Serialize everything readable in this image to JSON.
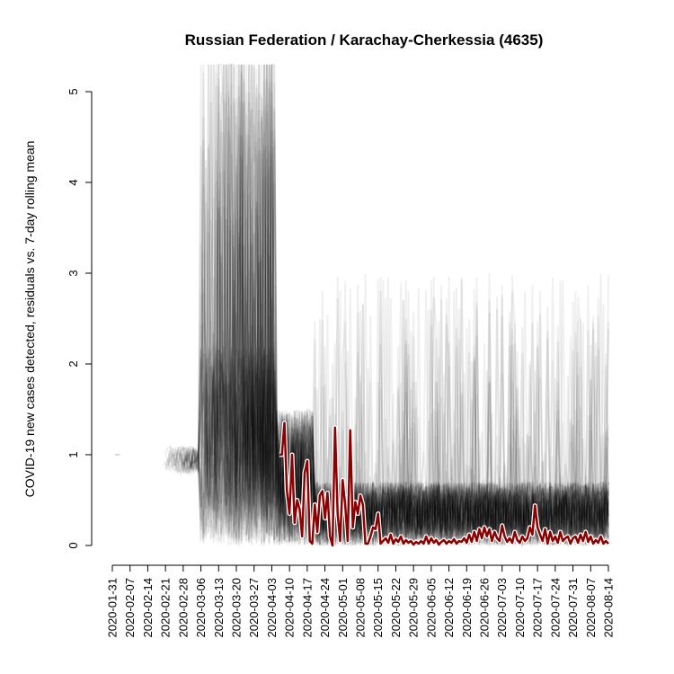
{
  "chart_data": {
    "type": "line",
    "title": "Russian Federation / Karachay-Cherkessia (4635)",
    "xlabel": "",
    "ylabel": "COVID-19 new cases detected, residuals vs. 7-day rolling mean",
    "ylim": [
      0,
      5
    ],
    "yticks": [
      0,
      1,
      2,
      3,
      4,
      5
    ],
    "xlim": [
      "2020-01-31",
      "2020-08-14"
    ],
    "xticks": [
      "2020-01-31",
      "2020-02-07",
      "2020-02-14",
      "2020-02-21",
      "2020-02-28",
      "2020-03-06",
      "2020-03-13",
      "2020-03-20",
      "2020-03-27",
      "2020-04-03",
      "2020-04-10",
      "2020-04-17",
      "2020-04-24",
      "2020-05-01",
      "2020-05-08",
      "2020-05-15",
      "2020-05-22",
      "2020-05-29",
      "2020-06-05",
      "2020-06-12",
      "2020-06-19",
      "2020-06-26",
      "2020-07-03",
      "2020-07-10",
      "2020-07-17",
      "2020-07-24",
      "2020-07-31",
      "2020-08-07",
      "2020-08-14"
    ],
    "grid": false,
    "background_series": {
      "description_color": "#000000",
      "opacity": 0.06
    },
    "series": [
      {
        "color": "#8b0000",
        "outline": "#ffffff",
        "points": [
          [
            "2020-04-06",
            1.0
          ],
          [
            "2020-04-07",
            1.0
          ],
          [
            "2020-04-08",
            1.35
          ],
          [
            "2020-04-09",
            0.6
          ],
          [
            "2020-04-10",
            0.35
          ],
          [
            "2020-04-11",
            1.0
          ],
          [
            "2020-04-12",
            0.25
          ],
          [
            "2020-04-13",
            0.5
          ],
          [
            "2020-04-14",
            0.4
          ],
          [
            "2020-04-15",
            0.1
          ],
          [
            "2020-04-16",
            0.8
          ],
          [
            "2020-04-17",
            0.93
          ],
          [
            "2020-04-18",
            0.05
          ],
          [
            "2020-04-19",
            0.02
          ],
          [
            "2020-04-20",
            0.45
          ],
          [
            "2020-04-21",
            0.15
          ],
          [
            "2020-04-22",
            0.55
          ],
          [
            "2020-04-23",
            0.6
          ],
          [
            "2020-04-24",
            0.3
          ],
          [
            "2020-04-25",
            0.58
          ],
          [
            "2020-04-26",
            0.1
          ],
          [
            "2020-04-27",
            0.0
          ],
          [
            "2020-04-28",
            1.3
          ],
          [
            "2020-04-29",
            0.35
          ],
          [
            "2020-04-30",
            0.05
          ],
          [
            "2020-05-01",
            0.72
          ],
          [
            "2020-05-02",
            0.45
          ],
          [
            "2020-05-03",
            0.05
          ],
          [
            "2020-05-04",
            1.27
          ],
          [
            "2020-05-05",
            0.2
          ],
          [
            "2020-05-06",
            0.48
          ],
          [
            "2020-05-07",
            0.35
          ],
          [
            "2020-05-08",
            0.55
          ],
          [
            "2020-05-09",
            0.45
          ],
          [
            "2020-05-10",
            0.02
          ],
          [
            "2020-05-11",
            0.02
          ],
          [
            "2020-05-12",
            0.1
          ],
          [
            "2020-05-13",
            0.2
          ],
          [
            "2020-05-14",
            0.18
          ],
          [
            "2020-05-15",
            0.35
          ],
          [
            "2020-05-16",
            0.02
          ],
          [
            "2020-05-17",
            0.05
          ],
          [
            "2020-05-18",
            0.08
          ],
          [
            "2020-05-19",
            0.03
          ],
          [
            "2020-05-20",
            0.12
          ],
          [
            "2020-05-21",
            0.02
          ],
          [
            "2020-05-22",
            0.07
          ],
          [
            "2020-05-23",
            0.04
          ],
          [
            "2020-05-24",
            0.1
          ],
          [
            "2020-05-25",
            0.02
          ],
          [
            "2020-05-26",
            0.06
          ],
          [
            "2020-05-27",
            0.03
          ],
          [
            "2020-05-28",
            0.05
          ],
          [
            "2020-05-29",
            0.01
          ],
          [
            "2020-05-30",
            0.04
          ],
          [
            "2020-05-31",
            0.02
          ],
          [
            "2020-06-01",
            0.05
          ],
          [
            "2020-06-02",
            0.02
          ],
          [
            "2020-06-03",
            0.1
          ],
          [
            "2020-06-04",
            0.02
          ],
          [
            "2020-06-05",
            0.08
          ],
          [
            "2020-06-06",
            0.03
          ],
          [
            "2020-06-07",
            0.06
          ],
          [
            "2020-06-08",
            0.01
          ],
          [
            "2020-06-09",
            0.04
          ],
          [
            "2020-06-10",
            0.06
          ],
          [
            "2020-06-11",
            0.02
          ],
          [
            "2020-06-12",
            0.05
          ],
          [
            "2020-06-13",
            0.03
          ],
          [
            "2020-06-14",
            0.07
          ],
          [
            "2020-06-15",
            0.02
          ],
          [
            "2020-06-16",
            0.05
          ],
          [
            "2020-06-17",
            0.04
          ],
          [
            "2020-06-18",
            0.08
          ],
          [
            "2020-06-19",
            0.03
          ],
          [
            "2020-06-20",
            0.12
          ],
          [
            "2020-06-21",
            0.04
          ],
          [
            "2020-06-22",
            0.15
          ],
          [
            "2020-06-23",
            0.05
          ],
          [
            "2020-06-24",
            0.18
          ],
          [
            "2020-06-25",
            0.08
          ],
          [
            "2020-06-26",
            0.2
          ],
          [
            "2020-06-27",
            0.1
          ],
          [
            "2020-06-28",
            0.18
          ],
          [
            "2020-06-29",
            0.05
          ],
          [
            "2020-06-30",
            0.15
          ],
          [
            "2020-07-01",
            0.08
          ],
          [
            "2020-07-02",
            0.05
          ],
          [
            "2020-07-03",
            0.22
          ],
          [
            "2020-07-04",
            0.1
          ],
          [
            "2020-07-05",
            0.04
          ],
          [
            "2020-07-06",
            0.08
          ],
          [
            "2020-07-07",
            0.03
          ],
          [
            "2020-07-08",
            0.15
          ],
          [
            "2020-07-09",
            0.06
          ],
          [
            "2020-07-10",
            0.03
          ],
          [
            "2020-07-11",
            0.1
          ],
          [
            "2020-07-12",
            0.05
          ],
          [
            "2020-07-13",
            0.08
          ],
          [
            "2020-07-14",
            0.2
          ],
          [
            "2020-07-15",
            0.12
          ],
          [
            "2020-07-16",
            0.44
          ],
          [
            "2020-07-17",
            0.2
          ],
          [
            "2020-07-18",
            0.12
          ],
          [
            "2020-07-19",
            0.05
          ],
          [
            "2020-07-20",
            0.18
          ],
          [
            "2020-07-21",
            0.02
          ],
          [
            "2020-07-22",
            0.15
          ],
          [
            "2020-07-23",
            0.05
          ],
          [
            "2020-07-24",
            0.1
          ],
          [
            "2020-07-25",
            0.03
          ],
          [
            "2020-07-26",
            0.15
          ],
          [
            "2020-07-27",
            0.05
          ],
          [
            "2020-07-28",
            0.08
          ],
          [
            "2020-07-29",
            0.1
          ],
          [
            "2020-07-30",
            0.02
          ],
          [
            "2020-07-31",
            0.08
          ],
          [
            "2020-08-01",
            0.1
          ],
          [
            "2020-08-02",
            0.03
          ],
          [
            "2020-08-03",
            0.12
          ],
          [
            "2020-08-04",
            0.05
          ],
          [
            "2020-08-05",
            0.15
          ],
          [
            "2020-08-06",
            0.04
          ],
          [
            "2020-08-07",
            0.1
          ],
          [
            "2020-08-08",
            0.02
          ],
          [
            "2020-08-09",
            0.06
          ],
          [
            "2020-08-10",
            0.03
          ],
          [
            "2020-08-11",
            0.1
          ],
          [
            "2020-08-12",
            0.02
          ],
          [
            "2020-08-13",
            0.05
          ],
          [
            "2020-08-14",
            0.02
          ]
        ]
      }
    ]
  }
}
